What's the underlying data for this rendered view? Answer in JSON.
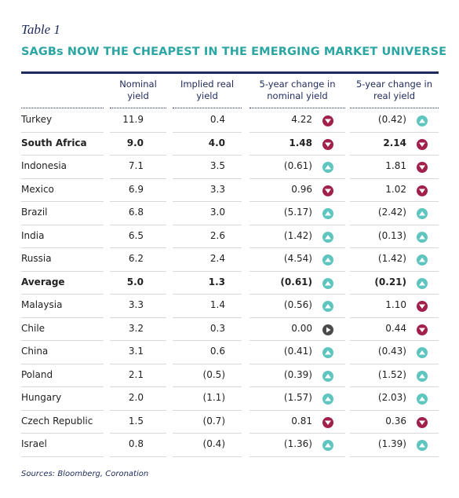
{
  "header": {
    "label": "Table 1",
    "title": "SAGBs NOW THE CHEAPEST IN THE EMERGING MARKET UNIVERSE"
  },
  "table": {
    "columns": [
      "Nominal yield",
      "Implied real yield",
      "5-year change in nominal yield",
      "5-year change in real yield"
    ],
    "rows": [
      {
        "cells": [
          "Turkey",
          "11.9",
          "0.4",
          "4.22",
          "(0.42)"
        ]
      },
      {
        "cells": [
          "South Africa",
          "9.0",
          "4.0",
          "1.48",
          "2.14"
        ],
        "bold": true
      },
      {
        "cells": [
          "Indonesia",
          "7.1",
          "3.5",
          "(0.61)",
          "1.81"
        ]
      },
      {
        "cells": [
          "Mexico",
          "6.9",
          "3.3",
          "0.96",
          "1.02"
        ]
      },
      {
        "cells": [
          "Brazil",
          "6.8",
          "3.0",
          "(5.17)",
          "(2.42)"
        ]
      },
      {
        "cells": [
          "India",
          "6.5",
          "2.6",
          "(1.42)",
          "(0.13)"
        ]
      },
      {
        "cells": [
          "Russia",
          "6.2",
          "2.4",
          "(4.54)",
          "(1.42)"
        ]
      },
      {
        "cells": [
          "Average",
          "5.0",
          "1.3",
          "(0.61)",
          "(0.21)"
        ],
        "bold": true
      },
      {
        "cells": [
          "Malaysia",
          "3.3",
          "1.4",
          "(0.56)",
          "1.10"
        ]
      },
      {
        "cells": [
          "Chile",
          "3.2",
          "0.3",
          "0.00",
          "0.44"
        ]
      },
      {
        "cells": [
          "China",
          "3.1",
          "0.6",
          "(0.41)",
          "(0.43)"
        ]
      },
      {
        "cells": [
          "Poland",
          "2.1",
          "(0.5)",
          "(0.39)",
          "(1.52)"
        ]
      },
      {
        "cells": [
          "Hungary",
          "2.0",
          "(1.1)",
          "(1.57)",
          "(2.03)"
        ]
      },
      {
        "cells": [
          "Czech Republic",
          "1.5",
          "(0.7)",
          "0.81",
          "0.36"
        ]
      },
      {
        "cells": [
          "Israel",
          "0.8",
          "(0.4)",
          "(1.36)",
          "(1.39)"
        ]
      }
    ]
  },
  "footer": {
    "source": "Sources: Bloomberg, Coronation"
  }
}
